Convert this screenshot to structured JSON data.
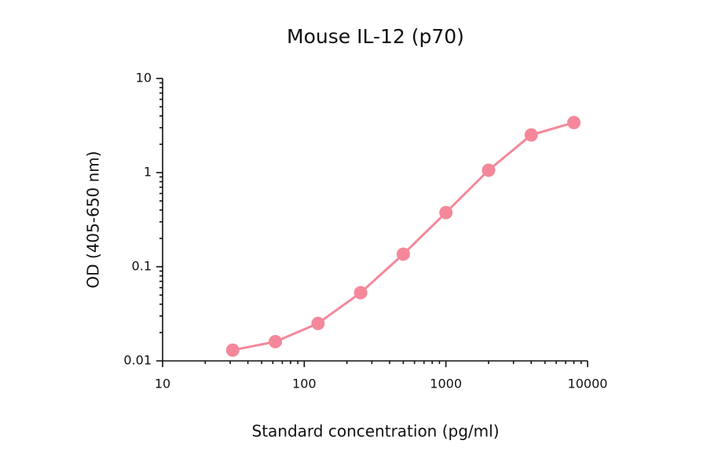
{
  "chart_data": {
    "type": "line",
    "title": "Mouse IL-12 (p70)",
    "x_label": "Standard concentration (pg/ml)",
    "y_label": "OD (405-650 nm)",
    "x": [
      31.25,
      62.5,
      125,
      250,
      500,
      1000,
      2000,
      4000,
      8000
    ],
    "series": [
      {
        "name": "Mouse IL-12 (p70)",
        "color": "#f4889a",
        "values": [
          0.013,
          0.016,
          0.025,
          0.053,
          0.136,
          0.376,
          1.06,
          2.51,
          3.4
        ]
      }
    ],
    "xlim": [
      10,
      10000
    ],
    "xticks": [
      10,
      100,
      1000,
      10000
    ],
    "ylim": [
      0.01,
      10
    ],
    "yticks": [
      0.01,
      0.1,
      1,
      10
    ],
    "xscale": "log",
    "yscale": "log",
    "minor_ticks": true,
    "markers": true
  }
}
